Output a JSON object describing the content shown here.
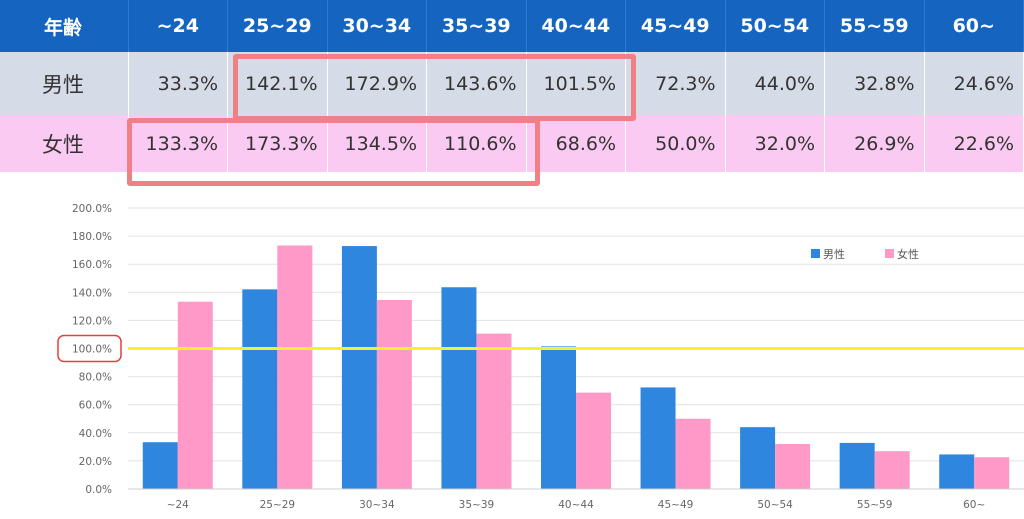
{
  "table": {
    "header_label": "年齢",
    "columns": [
      "~24",
      "25~29",
      "30~34",
      "35~39",
      "40~44",
      "45~49",
      "50~54",
      "55~59",
      "60~"
    ],
    "rows": [
      {
        "label": "男性",
        "values": [
          "33.3%",
          "142.1%",
          "172.9%",
          "143.6%",
          "101.5%",
          "72.3%",
          "44.0%",
          "32.8%",
          "24.6%"
        ]
      },
      {
        "label": "女性",
        "values": [
          "133.3%",
          "173.3%",
          "134.5%",
          "110.6%",
          "68.6%",
          "50.0%",
          "32.0%",
          "26.9%",
          "22.6%"
        ]
      }
    ]
  },
  "chart_data": {
    "type": "bar",
    "categories": [
      "~24",
      "25~29",
      "30~34",
      "35~39",
      "40~44",
      "45~49",
      "50~54",
      "55~59",
      "60~"
    ],
    "series": [
      {
        "name": "男性",
        "color": "#2e86de",
        "values": [
          33.3,
          142.1,
          172.9,
          143.6,
          101.5,
          72.3,
          44.0,
          32.8,
          24.6
        ]
      },
      {
        "name": "女性",
        "color": "#ff99c8",
        "values": [
          133.3,
          173.3,
          134.5,
          110.6,
          68.6,
          50.0,
          32.0,
          26.9,
          22.6
        ]
      }
    ],
    "ylim": [
      0,
      200
    ],
    "yticks": [
      "0.0%",
      "20.0%",
      "40.0%",
      "60.0%",
      "80.0%",
      "100.0%",
      "120.0%",
      "140.0%",
      "160.0%",
      "180.0%",
      "200.0%"
    ],
    "ytick_values": [
      0,
      20,
      40,
      60,
      80,
      100,
      120,
      140,
      160,
      180,
      200
    ],
    "reference_line": {
      "value": 100,
      "color": "#f5f030"
    },
    "highlighted_tick": "100.0%",
    "highlight_color": "#e04040",
    "grid": true,
    "legend_position": "top-right"
  }
}
